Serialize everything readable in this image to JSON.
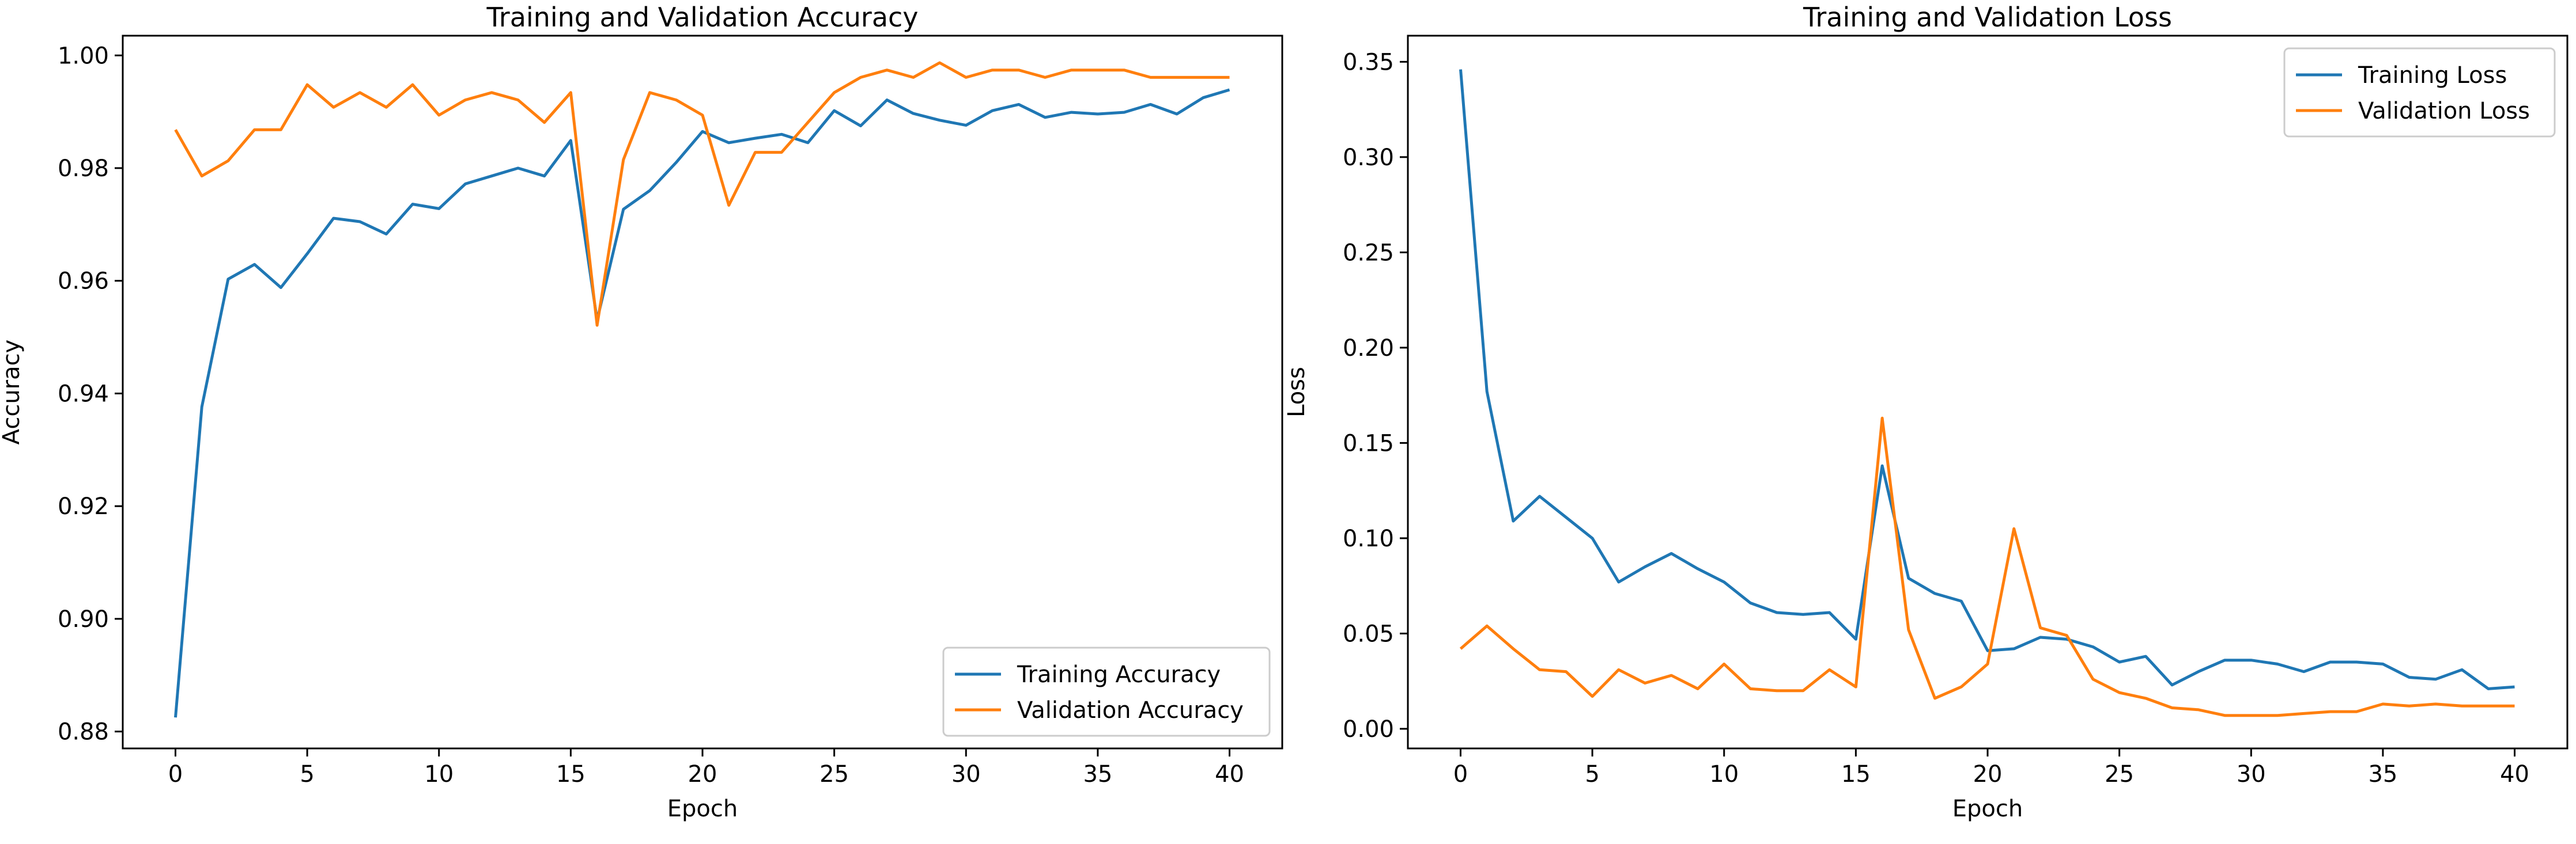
{
  "chart_data": [
    {
      "type": "line",
      "title": "Training and Validation Accuracy",
      "xlabel": "Epoch",
      "ylabel": "Accuracy",
      "xlim": [
        -2,
        42
      ],
      "ylim": [
        0.877,
        1.0035
      ],
      "xticks": [
        0,
        5,
        10,
        15,
        20,
        25,
        30,
        35,
        40
      ],
      "yticks": [
        0.88,
        0.9,
        0.92,
        0.94,
        0.96,
        0.98,
        1.0
      ],
      "ytick_labels": [
        "0.88",
        "0.90",
        "0.92",
        "0.94",
        "0.96",
        "0.98",
        "1.00"
      ],
      "legend_position": "lower-right",
      "x": [
        0,
        1,
        2,
        3,
        4,
        5,
        6,
        7,
        8,
        9,
        10,
        11,
        12,
        13,
        14,
        15,
        16,
        17,
        18,
        19,
        20,
        21,
        22,
        23,
        24,
        25,
        26,
        27,
        28,
        29,
        30,
        31,
        32,
        33,
        34,
        35,
        36,
        37,
        38,
        39,
        40
      ],
      "series": [
        {
          "name": "Training Accuracy",
          "color": "#1f77b4",
          "values": [
            0.8825,
            0.9376,
            0.9603,
            0.9629,
            0.9588,
            0.9648,
            0.9711,
            0.9705,
            0.9683,
            0.9736,
            0.9728,
            0.9772,
            0.9786,
            0.98,
            0.9786,
            0.9849,
            0.953,
            0.9727,
            0.976,
            0.981,
            0.9865,
            0.9845,
            0.9853,
            0.986,
            0.9845,
            0.9902,
            0.9875,
            0.9921,
            0.9897,
            0.9885,
            0.9876,
            0.9902,
            0.9913,
            0.989,
            0.9899,
            0.9896,
            0.9899,
            0.9913,
            0.9896,
            0.9925,
            0.9939
          ]
        },
        {
          "name": "Validation Accuracy",
          "color": "#ff7f0e",
          "values": [
            0.9868,
            0.9786,
            0.9813,
            0.9868,
            0.9868,
            0.9948,
            0.9908,
            0.9934,
            0.9908,
            0.9948,
            0.9894,
            0.9921,
            0.9934,
            0.9921,
            0.9881,
            0.9934,
            0.9521,
            0.9815,
            0.9934,
            0.9921,
            0.9894,
            0.9734,
            0.9828,
            0.9828,
            0.9881,
            0.9934,
            0.9961,
            0.9974,
            0.9961,
            0.9987,
            0.9961,
            0.9974,
            0.9974,
            0.9961,
            0.9974,
            0.9974,
            0.9974,
            0.9961,
            0.9961,
            0.9961,
            0.9961
          ]
        }
      ]
    },
    {
      "type": "line",
      "title": "Training and Validation Loss",
      "xlabel": "Epoch",
      "ylabel": "Loss",
      "xlim": [
        -2,
        42
      ],
      "ylim": [
        -0.0103,
        0.3637
      ],
      "xticks": [
        0,
        5,
        10,
        15,
        20,
        25,
        30,
        35,
        40
      ],
      "yticks": [
        0.0,
        0.05,
        0.1,
        0.15,
        0.2,
        0.25,
        0.3,
        0.35
      ],
      "ytick_labels": [
        "0.00",
        "0.05",
        "0.10",
        "0.15",
        "0.20",
        "0.25",
        "0.30",
        "0.35"
      ],
      "legend_position": "upper-right",
      "x": [
        0,
        1,
        2,
        3,
        4,
        5,
        6,
        7,
        8,
        9,
        10,
        11,
        12,
        13,
        14,
        15,
        16,
        17,
        18,
        19,
        20,
        21,
        22,
        23,
        24,
        25,
        26,
        27,
        28,
        29,
        30,
        31,
        32,
        33,
        34,
        35,
        36,
        37,
        38,
        39,
        40
      ],
      "series": [
        {
          "name": "Training Loss",
          "color": "#1f77b4",
          "values": [
            0.346,
            0.177,
            0.109,
            0.122,
            0.111,
            0.1,
            0.077,
            0.085,
            0.092,
            0.084,
            0.077,
            0.066,
            0.061,
            0.06,
            0.061,
            0.047,
            0.138,
            0.079,
            0.071,
            0.067,
            0.041,
            0.042,
            0.048,
            0.047,
            0.043,
            0.035,
            0.038,
            0.023,
            0.03,
            0.036,
            0.036,
            0.034,
            0.03,
            0.035,
            0.035,
            0.034,
            0.027,
            0.026,
            0.031,
            0.021,
            0.022
          ]
        },
        {
          "name": "Validation Loss",
          "color": "#ff7f0e",
          "values": [
            0.042,
            0.054,
            0.042,
            0.031,
            0.03,
            0.017,
            0.031,
            0.024,
            0.028,
            0.021,
            0.034,
            0.021,
            0.02,
            0.02,
            0.031,
            0.022,
            0.163,
            0.052,
            0.016,
            0.022,
            0.034,
            0.105,
            0.053,
            0.049,
            0.026,
            0.019,
            0.016,
            0.011,
            0.01,
            0.007,
            0.007,
            0.007,
            0.008,
            0.009,
            0.009,
            0.013,
            0.012,
            0.013,
            0.012,
            0.012,
            0.012
          ]
        }
      ]
    }
  ]
}
